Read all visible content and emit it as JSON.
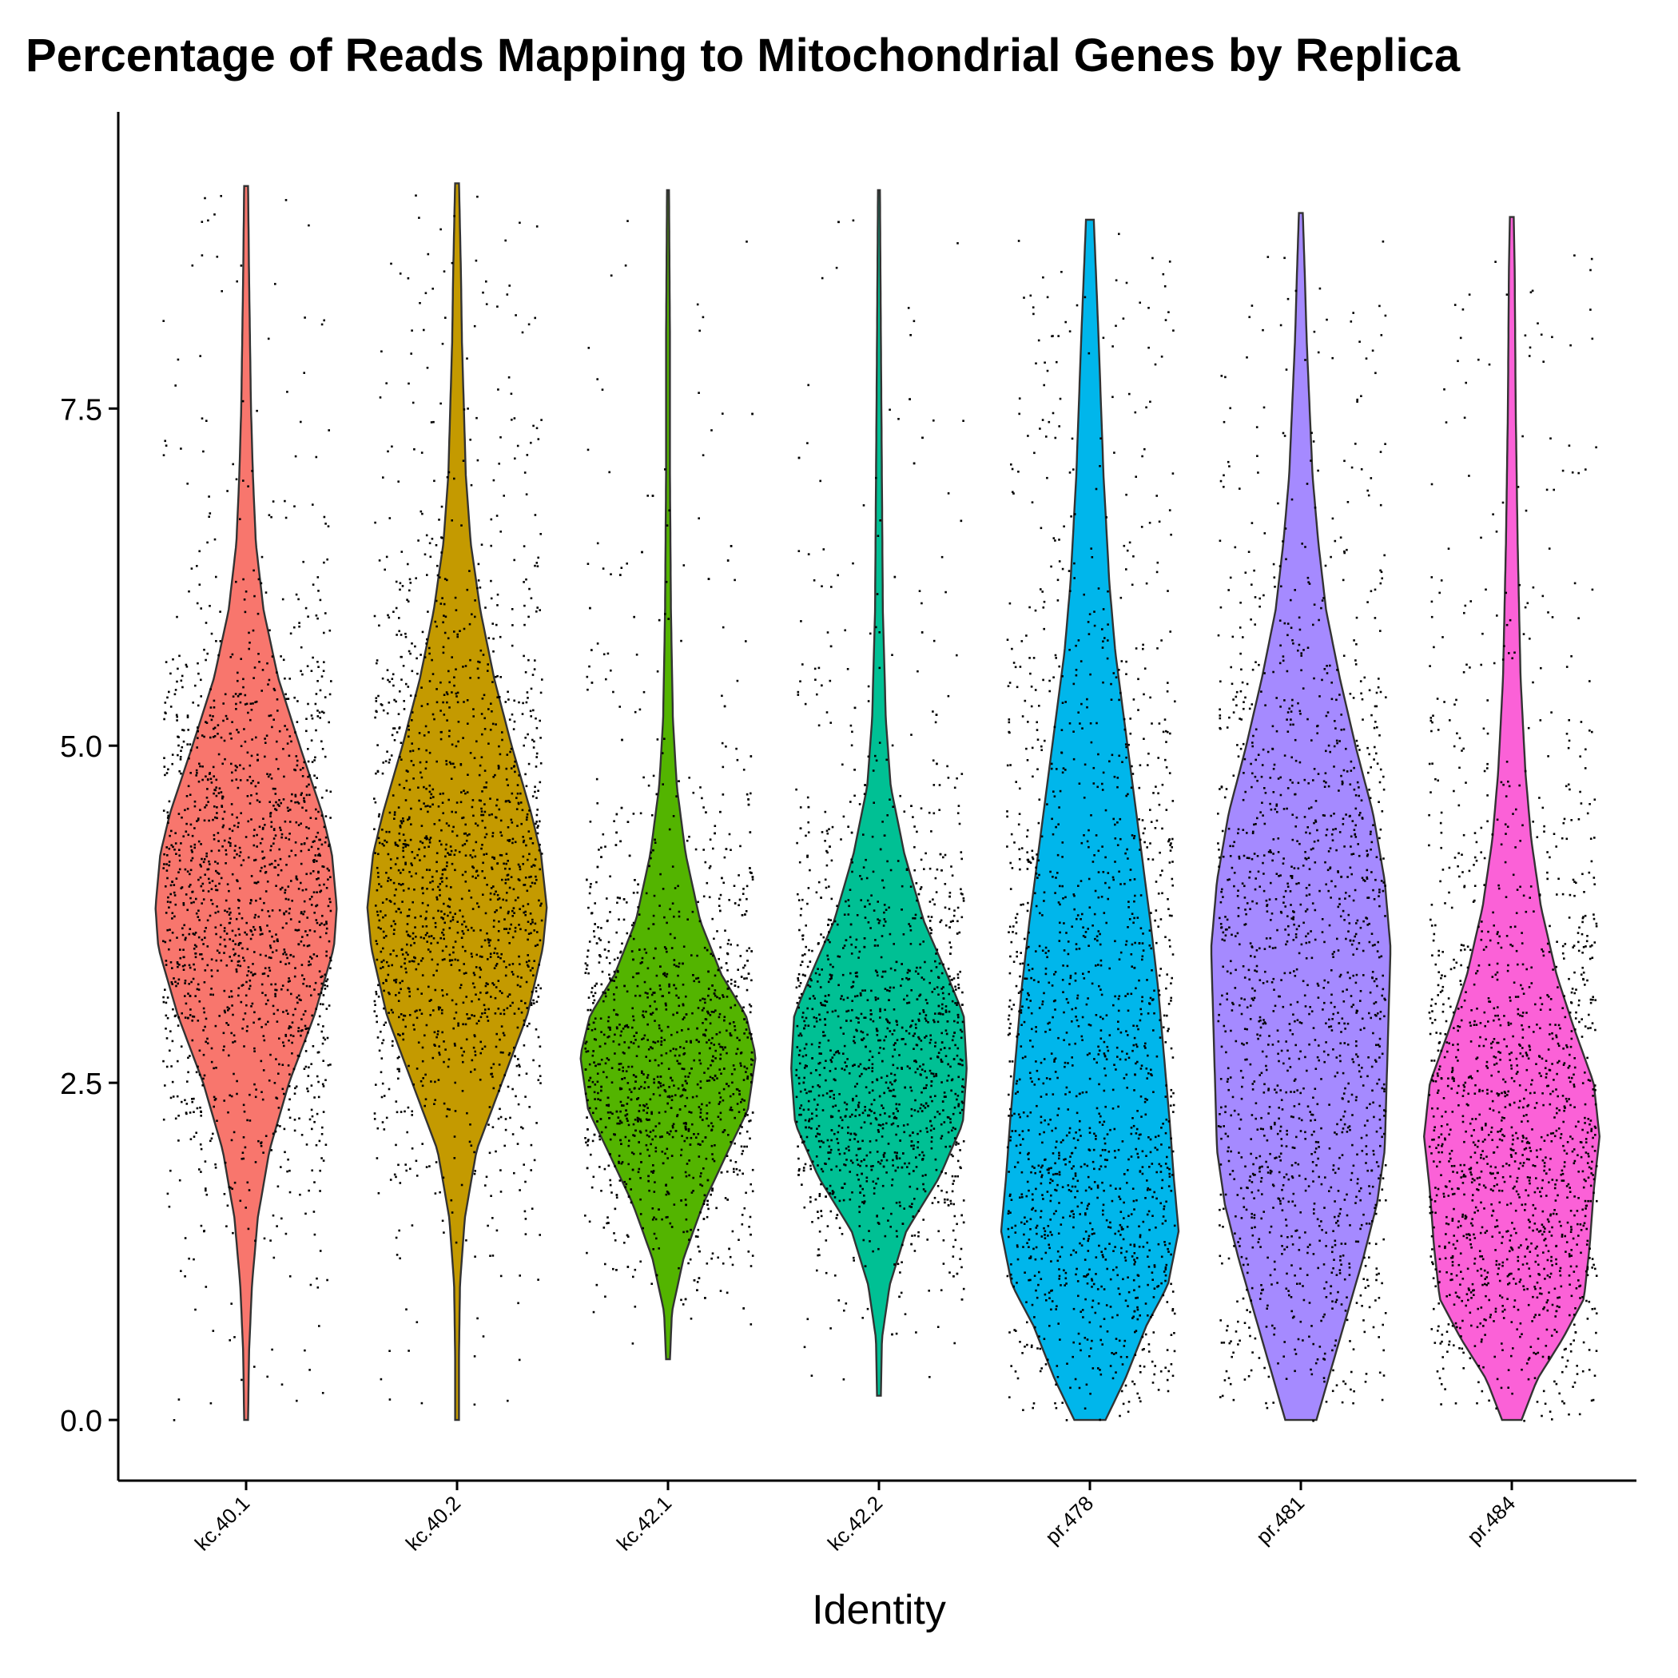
{
  "chart_data": {
    "type": "violin",
    "title": "Percentage of Reads Mapping to Mitochondrial Genes by Replica",
    "xlabel": "Identity",
    "ylabel": "",
    "ylim": [
      -0.45,
      9.7
    ],
    "yticks": [
      "0.0",
      "2.5",
      "5.0",
      "7.5"
    ],
    "ytick_values": [
      0,
      2.5,
      5,
      7.5
    ],
    "grid": false,
    "legend": "none",
    "categories": [
      "kc.40.1",
      "kc.40.2",
      "kc.42.1",
      "kc.42.2",
      "pr.478",
      "pr.481",
      "pr.484"
    ],
    "colors": [
      "#F8766D",
      "#C49A00",
      "#53B400",
      "#00C094",
      "#00B6EB",
      "#A58AFF",
      "#FB61D7"
    ],
    "series": [
      {
        "category": "kc.40.1",
        "min": 0.0,
        "max": 9.15,
        "median": 3.7,
        "density": [
          [
            0.0,
            0.02
          ],
          [
            0.5,
            0.03
          ],
          [
            1.0,
            0.06
          ],
          [
            1.5,
            0.12
          ],
          [
            2.0,
            0.24
          ],
          [
            2.5,
            0.44
          ],
          [
            3.0,
            0.7
          ],
          [
            3.5,
            0.9
          ],
          [
            3.8,
            0.93
          ],
          [
            4.2,
            0.88
          ],
          [
            4.5,
            0.78
          ],
          [
            5.0,
            0.55
          ],
          [
            5.5,
            0.33
          ],
          [
            6.0,
            0.18
          ],
          [
            6.5,
            0.1
          ],
          [
            7.0,
            0.07
          ],
          [
            7.5,
            0.05
          ],
          [
            8.0,
            0.04
          ],
          [
            8.5,
            0.03
          ],
          [
            9.15,
            0.02
          ]
        ]
      },
      {
        "category": "kc.40.2",
        "min": 0.0,
        "max": 9.17,
        "median": 3.8,
        "density": [
          [
            0.0,
            0.02
          ],
          [
            0.5,
            0.02
          ],
          [
            1.0,
            0.03
          ],
          [
            1.5,
            0.08
          ],
          [
            2.0,
            0.2
          ],
          [
            2.5,
            0.46
          ],
          [
            3.0,
            0.72
          ],
          [
            3.5,
            0.88
          ],
          [
            3.8,
            0.92
          ],
          [
            4.2,
            0.86
          ],
          [
            4.5,
            0.76
          ],
          [
            5.0,
            0.56
          ],
          [
            5.5,
            0.38
          ],
          [
            6.0,
            0.24
          ],
          [
            6.5,
            0.14
          ],
          [
            7.0,
            0.09
          ],
          [
            7.5,
            0.07
          ],
          [
            8.0,
            0.05
          ],
          [
            8.5,
            0.04
          ],
          [
            9.17,
            0.02
          ]
        ]
      },
      {
        "category": "kc.42.1",
        "min": 0.45,
        "max": 9.12,
        "median": 2.5,
        "density": [
          [
            0.45,
            0.02
          ],
          [
            0.8,
            0.04
          ],
          [
            1.2,
            0.16
          ],
          [
            1.6,
            0.36
          ],
          [
            2.0,
            0.62
          ],
          [
            2.3,
            0.82
          ],
          [
            2.7,
            0.9
          ],
          [
            3.0,
            0.8
          ],
          [
            3.3,
            0.55
          ],
          [
            3.7,
            0.33
          ],
          [
            4.2,
            0.18
          ],
          [
            4.7,
            0.09
          ],
          [
            5.2,
            0.05
          ],
          [
            6.0,
            0.03
          ],
          [
            7.0,
            0.02
          ],
          [
            8.0,
            0.02
          ],
          [
            9.12,
            0.01
          ]
        ]
      },
      {
        "category": "kc.42.2",
        "min": 0.18,
        "max": 9.12,
        "median": 2.5,
        "density": [
          [
            0.18,
            0.02
          ],
          [
            0.6,
            0.03
          ],
          [
            1.0,
            0.11
          ],
          [
            1.4,
            0.28
          ],
          [
            1.8,
            0.62
          ],
          [
            2.2,
            0.86
          ],
          [
            2.6,
            0.9
          ],
          [
            3.0,
            0.87
          ],
          [
            3.3,
            0.7
          ],
          [
            3.7,
            0.46
          ],
          [
            4.2,
            0.26
          ],
          [
            4.7,
            0.12
          ],
          [
            5.2,
            0.07
          ],
          [
            6.0,
            0.04
          ],
          [
            7.0,
            0.03
          ],
          [
            8.0,
            0.02
          ],
          [
            9.12,
            0.01
          ]
        ]
      },
      {
        "category": "pr.478",
        "min": 0.0,
        "max": 8.9,
        "median": 2.2,
        "density": [
          [
            0.0,
            0.16
          ],
          [
            0.3,
            0.36
          ],
          [
            0.7,
            0.58
          ],
          [
            1.0,
            0.8
          ],
          [
            1.4,
            0.91
          ],
          [
            1.8,
            0.86
          ],
          [
            2.2,
            0.82
          ],
          [
            2.7,
            0.76
          ],
          [
            3.2,
            0.7
          ],
          [
            3.7,
            0.62
          ],
          [
            4.2,
            0.53
          ],
          [
            4.7,
            0.44
          ],
          [
            5.2,
            0.35
          ],
          [
            5.7,
            0.26
          ],
          [
            6.2,
            0.2
          ],
          [
            7.0,
            0.14
          ],
          [
            8.0,
            0.09
          ],
          [
            8.9,
            0.04
          ]
        ]
      },
      {
        "category": "pr.481",
        "min": 0.0,
        "max": 8.95,
        "median": 3.0,
        "density": [
          [
            0.0,
            0.16
          ],
          [
            0.4,
            0.32
          ],
          [
            0.8,
            0.48
          ],
          [
            1.2,
            0.64
          ],
          [
            1.6,
            0.78
          ],
          [
            2.0,
            0.86
          ],
          [
            2.5,
            0.88
          ],
          [
            3.0,
            0.9
          ],
          [
            3.5,
            0.92
          ],
          [
            4.0,
            0.86
          ],
          [
            4.5,
            0.74
          ],
          [
            5.0,
            0.56
          ],
          [
            5.5,
            0.4
          ],
          [
            6.0,
            0.26
          ],
          [
            6.5,
            0.18
          ],
          [
            7.0,
            0.12
          ],
          [
            7.5,
            0.09
          ],
          [
            8.0,
            0.06
          ],
          [
            8.5,
            0.04
          ],
          [
            8.95,
            0.02
          ]
        ]
      },
      {
        "category": "pr.484",
        "min": 0.0,
        "max": 8.92,
        "median": 2.0,
        "density": [
          [
            0.0,
            0.1
          ],
          [
            0.3,
            0.26
          ],
          [
            0.6,
            0.52
          ],
          [
            0.9,
            0.74
          ],
          [
            1.3,
            0.8
          ],
          [
            1.7,
            0.84
          ],
          [
            2.1,
            0.9
          ],
          [
            2.5,
            0.84
          ],
          [
            2.9,
            0.64
          ],
          [
            3.3,
            0.46
          ],
          [
            3.8,
            0.3
          ],
          [
            4.3,
            0.2
          ],
          [
            4.8,
            0.14
          ],
          [
            5.5,
            0.09
          ],
          [
            6.5,
            0.06
          ],
          [
            7.5,
            0.04
          ],
          [
            8.5,
            0.03
          ],
          [
            8.92,
            0.02
          ]
        ]
      }
    ]
  }
}
